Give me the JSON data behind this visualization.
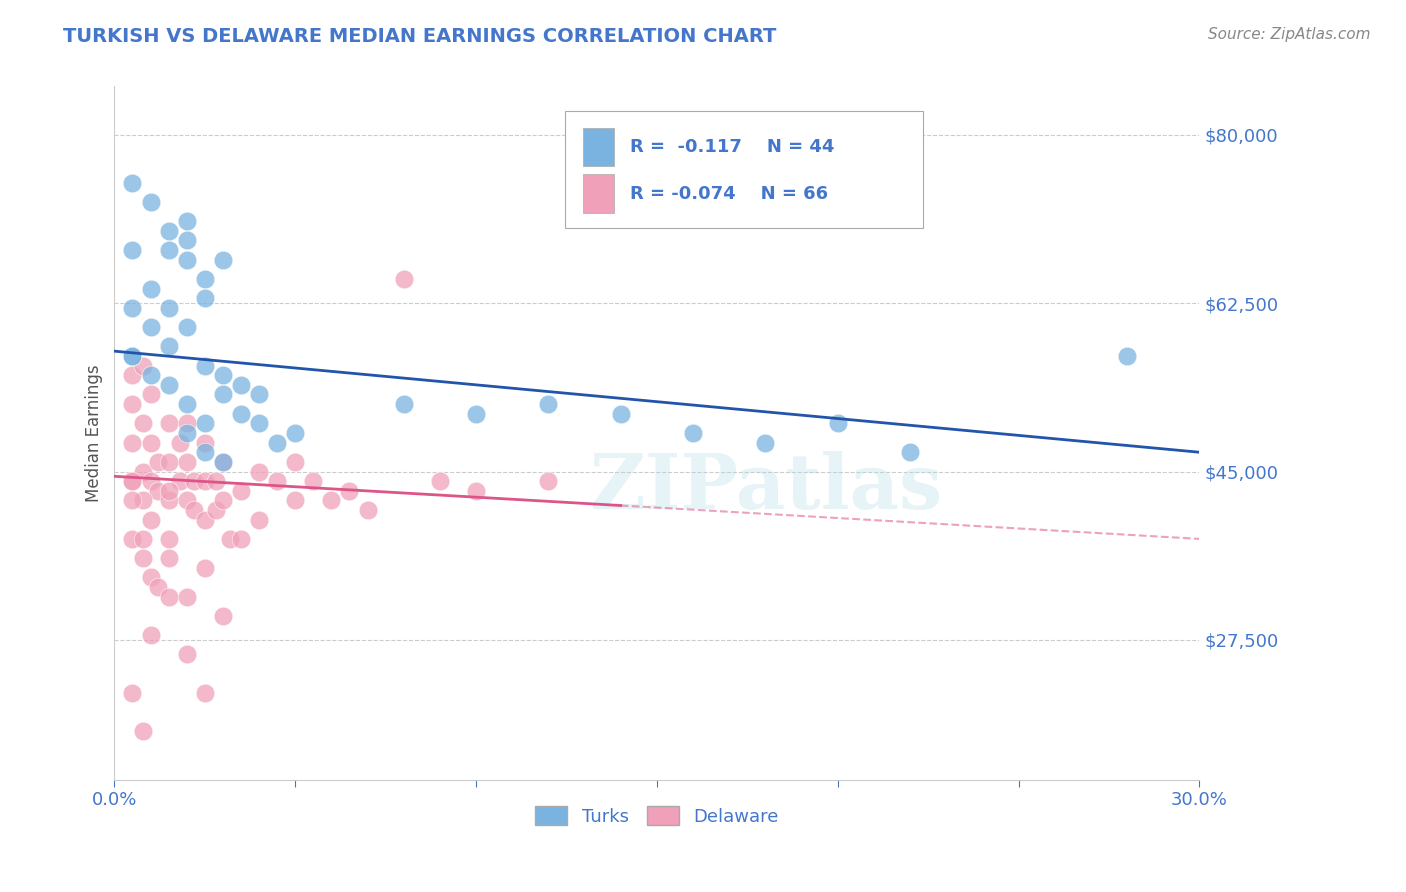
{
  "title": "TURKISH VS DELAWARE MEDIAN EARNINGS CORRELATION CHART",
  "source": "Source: ZipAtlas.com",
  "ylabel": "Median Earnings",
  "xlim": [
    0.0,
    0.3
  ],
  "ylim": [
    13000,
    85000
  ],
  "yticks": [
    27500,
    45000,
    62500,
    80000
  ],
  "ytick_labels": [
    "$27,500",
    "$45,000",
    "$62,500",
    "$80,000"
  ],
  "xticks": [
    0.0,
    0.05,
    0.1,
    0.15,
    0.2,
    0.25,
    0.3
  ],
  "xtick_labels": [
    "0.0%",
    "",
    "",
    "",
    "",
    "",
    "30.0%"
  ],
  "blue_color": "#7ab3e0",
  "pink_color": "#f0a0b8",
  "blue_line_color": "#2255aa",
  "pink_line_color": "#dd5588",
  "axis_label_color": "#4477cc",
  "legend_label1": "Turks",
  "legend_label2": "Delaware",
  "watermark": "ZIPatlas",
  "turks_x": [
    0.005,
    0.01,
    0.015,
    0.015,
    0.02,
    0.02,
    0.02,
    0.025,
    0.025,
    0.03,
    0.005,
    0.01,
    0.01,
    0.015,
    0.015,
    0.02,
    0.025,
    0.03,
    0.035,
    0.04,
    0.005,
    0.01,
    0.015,
    0.02,
    0.025,
    0.03,
    0.035,
    0.04,
    0.045,
    0.05,
    0.08,
    0.1,
    0.12,
    0.14,
    0.16,
    0.18,
    0.2,
    0.22,
    0.28,
    0.005,
    0.02,
    0.025,
    0.03,
    0.005
  ],
  "turks_y": [
    75000,
    73000,
    70000,
    68000,
    71000,
    69000,
    67000,
    65000,
    63000,
    67000,
    62000,
    64000,
    60000,
    62000,
    58000,
    60000,
    56000,
    55000,
    54000,
    53000,
    57000,
    55000,
    54000,
    52000,
    50000,
    53000,
    51000,
    50000,
    48000,
    49000,
    52000,
    51000,
    52000,
    51000,
    49000,
    48000,
    50000,
    47000,
    57000,
    57000,
    49000,
    47000,
    46000,
    68000
  ],
  "delaware_x": [
    0.005,
    0.005,
    0.005,
    0.005,
    0.008,
    0.008,
    0.008,
    0.01,
    0.01,
    0.01,
    0.012,
    0.012,
    0.015,
    0.015,
    0.015,
    0.015,
    0.018,
    0.018,
    0.02,
    0.02,
    0.02,
    0.022,
    0.022,
    0.025,
    0.025,
    0.025,
    0.028,
    0.028,
    0.03,
    0.03,
    0.032,
    0.035,
    0.035,
    0.04,
    0.04,
    0.045,
    0.05,
    0.05,
    0.055,
    0.06,
    0.065,
    0.07,
    0.08,
    0.09,
    0.1,
    0.12,
    0.005,
    0.008,
    0.01,
    0.015,
    0.005,
    0.008,
    0.01,
    0.012,
    0.015,
    0.02,
    0.025,
    0.03,
    0.005,
    0.008,
    0.01,
    0.015,
    0.02,
    0.025,
    0.005,
    0.008
  ],
  "delaware_y": [
    55000,
    52000,
    48000,
    44000,
    56000,
    50000,
    45000,
    53000,
    48000,
    44000,
    46000,
    43000,
    50000,
    46000,
    42000,
    38000,
    48000,
    44000,
    50000,
    46000,
    42000,
    44000,
    41000,
    48000,
    44000,
    40000,
    44000,
    41000,
    46000,
    42000,
    38000,
    43000,
    38000,
    45000,
    40000,
    44000,
    46000,
    42000,
    44000,
    42000,
    43000,
    41000,
    65000,
    44000,
    43000,
    44000,
    44000,
    42000,
    40000,
    43000,
    38000,
    36000,
    34000,
    33000,
    36000,
    32000,
    35000,
    30000,
    42000,
    38000,
    28000,
    32000,
    26000,
    22000,
    22000,
    18000
  ]
}
